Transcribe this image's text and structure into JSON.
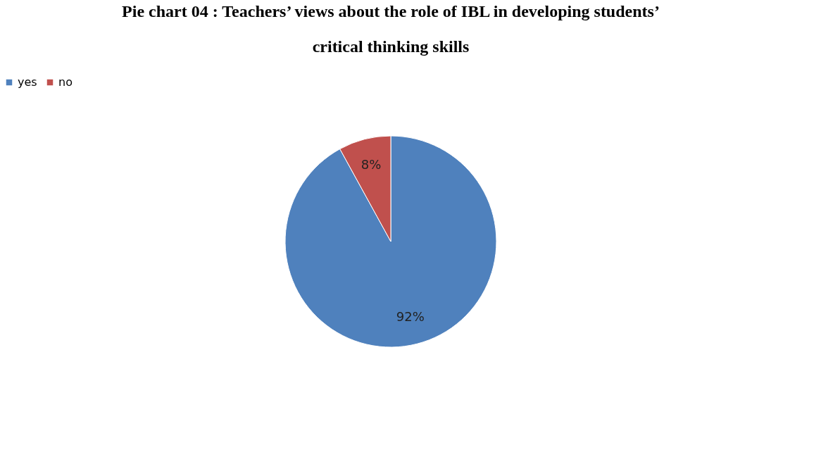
{
  "chart_data": {
    "type": "pie",
    "title": "Pie chart 04 : Teachers’ views about the role of IBL in developing students’ critical thinking skills",
    "categories": [
      "yes",
      "no"
    ],
    "values": [
      92,
      8
    ],
    "colors": [
      "#4f81bd",
      "#c0504d"
    ],
    "value_labels": [
      "92%",
      "8%"
    ],
    "legend": "top"
  }
}
